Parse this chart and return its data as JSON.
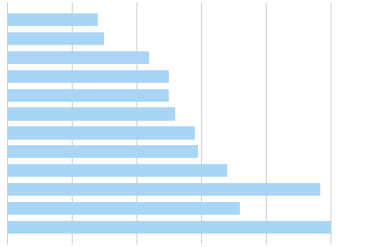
{
  "categories": [
    "",
    "",
    "",
    "",
    "",
    "",
    "",
    "",
    "",
    "",
    "",
    ""
  ],
  "values": [
    50.0,
    36.0,
    48.5,
    34.0,
    29.5,
    29.0,
    26.0,
    25.0,
    25.0,
    22.0,
    15.0,
    14.0
  ],
  "bar_color": "#a8d5f5",
  "xlim": [
    0,
    55
  ],
  "xticks": [
    0,
    10,
    20,
    30,
    40,
    50
  ],
  "figsize": [
    4.69,
    3.13
  ],
  "dpi": 100,
  "background_color": "#ffffff",
  "grid_color": "#bbbbbb"
}
